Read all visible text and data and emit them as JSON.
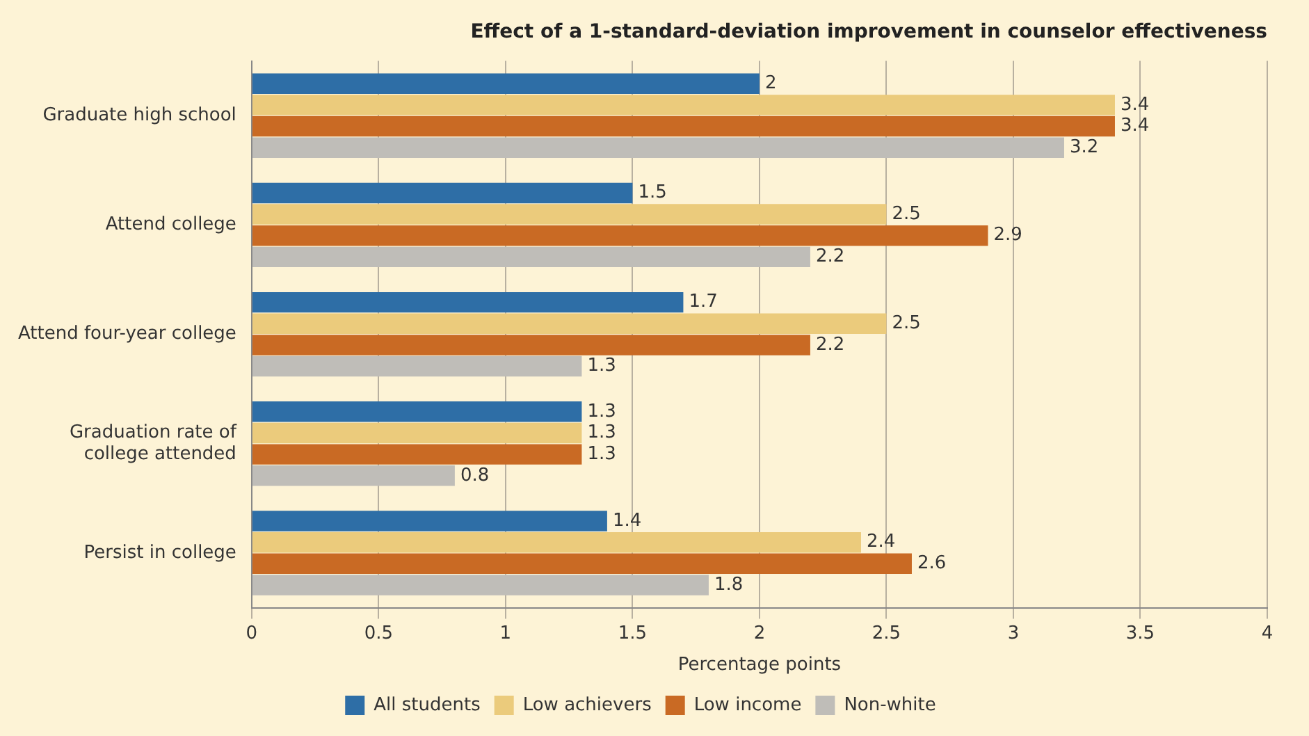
{
  "chart_data": {
    "type": "bar",
    "orientation": "horizontal",
    "title": "Effect of a 1-standard-deviation improvement in counselor effectiveness",
    "xlabel": "Percentage points",
    "categories": [
      "Graduate high school",
      "Attend college",
      "Attend four-year college",
      "Graduation rate of college attended",
      "Persist in college"
    ],
    "series": [
      {
        "name": "All students",
        "color": "#2e6ea6",
        "values": [
          2,
          1.5,
          1.7,
          1.3,
          1.4
        ]
      },
      {
        "name": "Low achievers",
        "color": "#ebcb7c",
        "values": [
          3.4,
          2.5,
          2.5,
          1.3,
          2.4
        ]
      },
      {
        "name": "Low income",
        "color": "#c96a24",
        "values": [
          3.4,
          2.9,
          2.2,
          1.3,
          2.6
        ]
      },
      {
        "name": "Non-white",
        "color": "#bfbdb8",
        "values": [
          3.2,
          2.2,
          1.3,
          0.8,
          1.8
        ]
      }
    ],
    "xlim": [
      0,
      4
    ],
    "xticks": [
      0,
      0.5,
      1,
      1.5,
      2,
      2.5,
      3,
      3.5,
      4
    ],
    "grid": "x",
    "legend": "bottom",
    "data_labels": true
  }
}
